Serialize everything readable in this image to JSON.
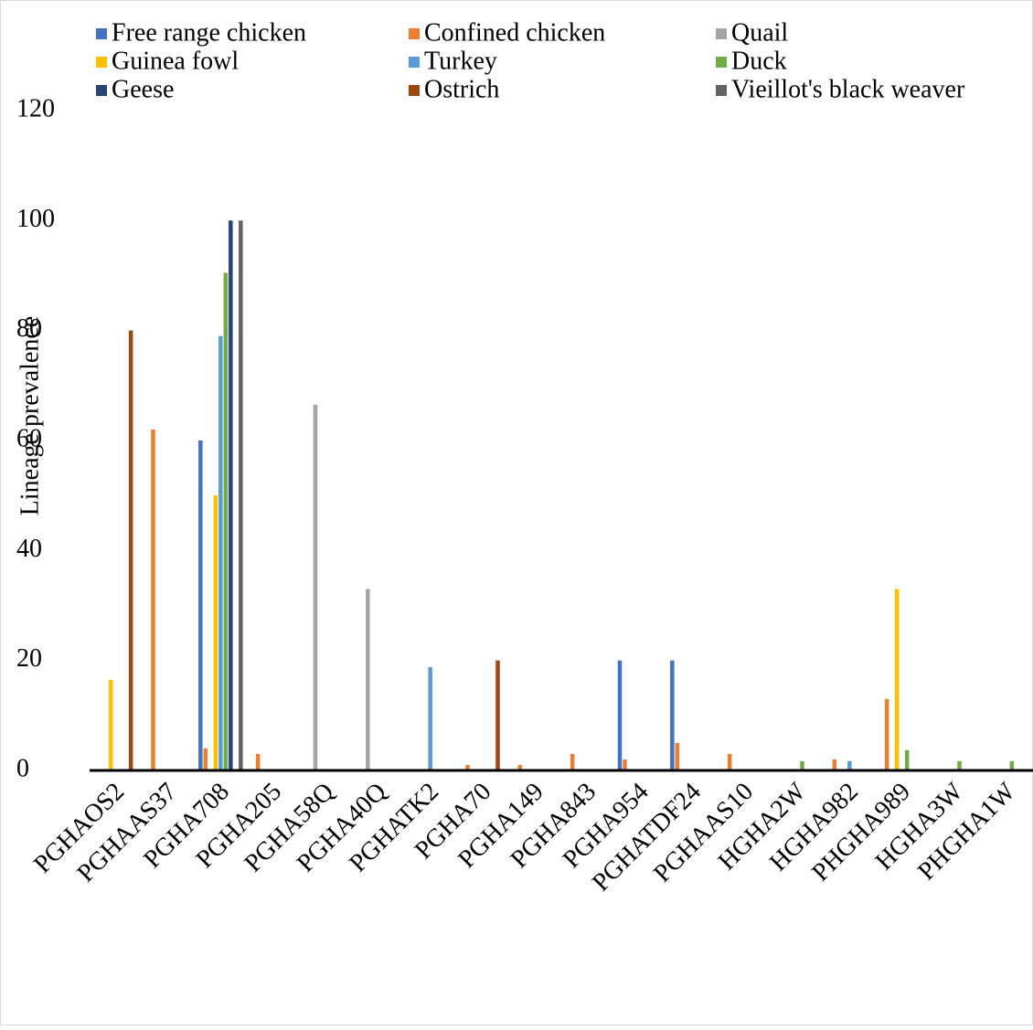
{
  "chart_data": {
    "type": "bar",
    "y_label": "Lineage prevalence",
    "categories": [
      "PGHAOS2",
      "PGHAAS37",
      "PGHA708",
      "PGHA205",
      "PGHA58Q",
      "PGHA40Q",
      "PGHATK2",
      "PGHA70",
      "PGHA149",
      "PGHA843",
      "PGHA954",
      "PGHATDF24",
      "PGHAAS10",
      "HGHA2W",
      "HGHA982",
      "PHGHA989",
      "HGHA3W",
      "PHGHA1W"
    ],
    "series": [
      {
        "name": "Free range chicken",
        "color": "#4472c4",
        "values": [
          0,
          0,
          60,
          0,
          0,
          0,
          0,
          0,
          0,
          0,
          20,
          20,
          0,
          0,
          0,
          0,
          0,
          0
        ]
      },
      {
        "name": "Confined chicken",
        "color": "#ed7d31",
        "values": [
          0,
          62,
          4,
          3,
          0,
          0,
          0,
          1,
          1,
          3,
          2,
          5,
          3,
          0,
          2,
          13,
          0,
          0
        ]
      },
      {
        "name": "Quail",
        "color": "#a5a5a5",
        "values": [
          0,
          0,
          0,
          0,
          66.5,
          33,
          0,
          0,
          0,
          0,
          0,
          0,
          0,
          0,
          0,
          0,
          0,
          0
        ]
      },
      {
        "name": "Guinea fowl",
        "color": "#ffc000",
        "values": [
          16.5,
          0,
          50,
          0,
          0,
          0,
          0,
          0,
          0,
          0,
          0,
          0,
          0,
          0,
          0,
          33,
          0,
          0
        ]
      },
      {
        "name": "Turkey",
        "color": "#5b9bd5",
        "values": [
          0,
          0,
          79,
          0,
          0,
          0,
          18.8,
          0,
          0,
          0,
          0,
          0,
          0,
          0,
          1.7,
          0,
          0,
          0
        ]
      },
      {
        "name": "Duck",
        "color": "#70ad47",
        "values": [
          0,
          0,
          90.5,
          0,
          0,
          0,
          0,
          0,
          0,
          0,
          0,
          0,
          0,
          1.7,
          0,
          3.7,
          1.7,
          1.7
        ]
      },
      {
        "name": "Geese",
        "color": "#264478",
        "values": [
          0,
          0,
          100,
          0,
          0,
          0,
          0,
          0,
          0,
          0,
          0,
          0,
          0,
          0,
          0,
          0,
          0,
          0
        ]
      },
      {
        "name": "Ostrich",
        "color": "#9e480e",
        "values": [
          80,
          0,
          0,
          0,
          0,
          0,
          0,
          20,
          0,
          0,
          0,
          0,
          0,
          0,
          0,
          0,
          0,
          0
        ]
      },
      {
        "name": "Vieillot's black weaver",
        "color": "#636363",
        "values": [
          0,
          0,
          100,
          0,
          0,
          0,
          0,
          0,
          0,
          0,
          0,
          0,
          0,
          0,
          0,
          0,
          0,
          0
        ]
      }
    ],
    "ylim": [
      0,
      120
    ],
    "yticks": [
      0,
      20,
      40,
      60,
      80,
      100,
      120
    ],
    "grid": false
  }
}
